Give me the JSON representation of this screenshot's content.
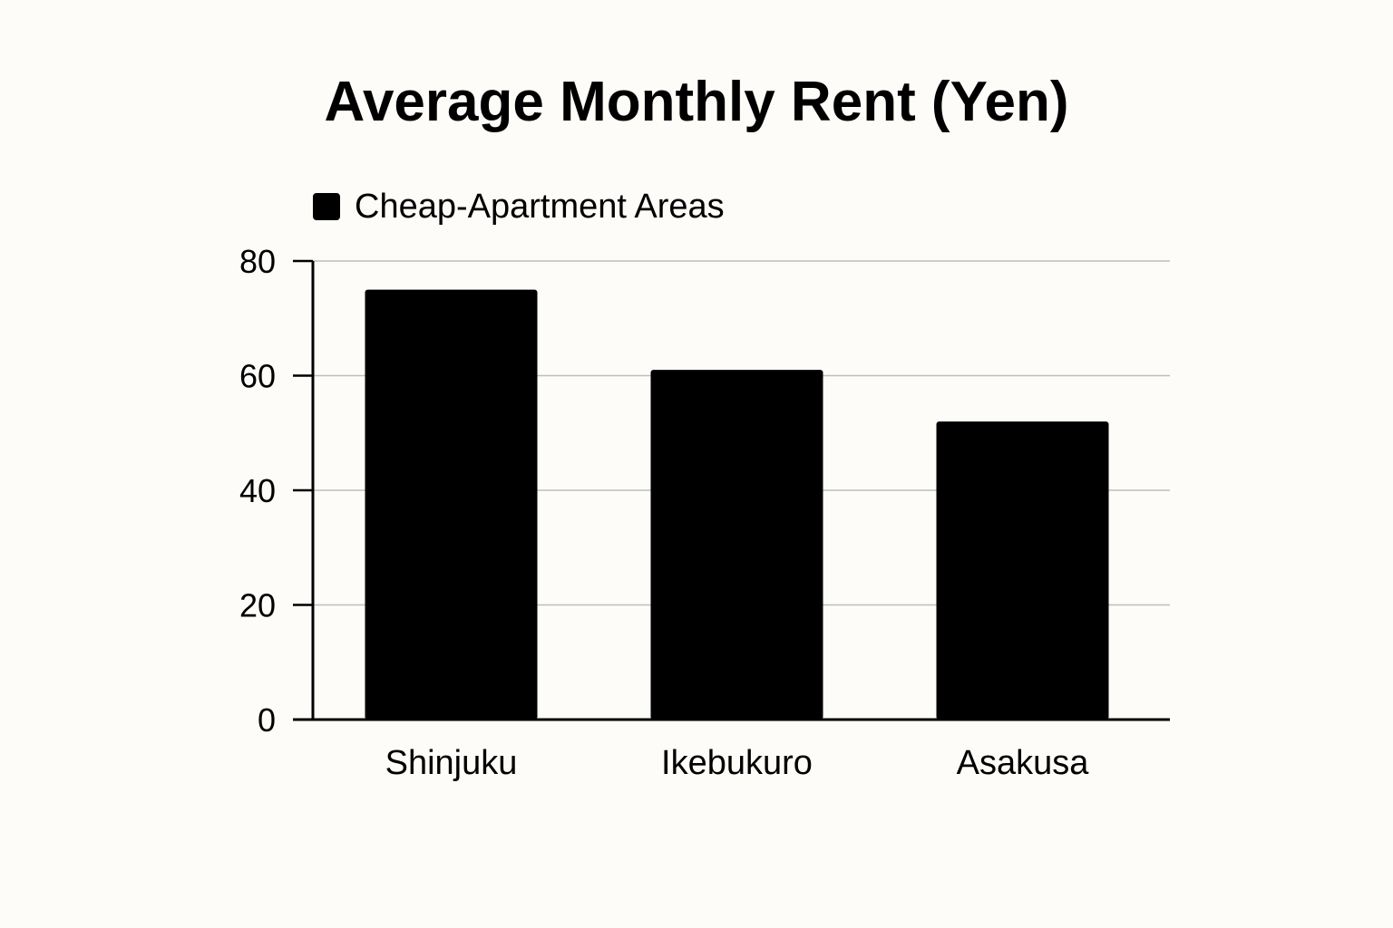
{
  "chart_data": {
    "type": "bar",
    "title": "Average Monthly Rent (Yen)",
    "xlabel": "",
    "ylabel": "",
    "categories": [
      "Shinjuku",
      "Ikebukuro",
      "Asakusa"
    ],
    "series": [
      {
        "name": "Cheap-Apartment Areas",
        "values": [
          75,
          61,
          52
        ]
      }
    ],
    "ylim": [
      0,
      80
    ],
    "yticks": [
      "0",
      "20",
      "40",
      "60",
      "80"
    ],
    "grid": true,
    "legend": "top-left",
    "colors": {
      "bar": "#000000",
      "grid": "#bdbdbd",
      "axis": "#000000",
      "background": "#fdfcf8"
    }
  }
}
